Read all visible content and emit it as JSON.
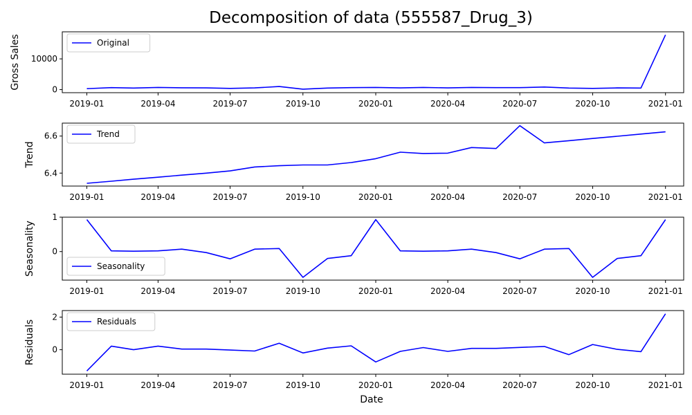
{
  "figure": {
    "title": "Decomposition of data (555587_Drug_3)",
    "xlabel": "Date"
  },
  "chart_data": [
    {
      "type": "line",
      "ylabel": "Gross Sales",
      "legend": "Original",
      "legend_position": "top-left",
      "color": "#0000ff",
      "grid": false,
      "xlim": [
        "2018-12-01",
        "2021-01-24"
      ],
      "ylim": [
        -1000,
        18800
      ],
      "x_ticks": [
        "2019-01",
        "2019-04",
        "2019-07",
        "2019-10",
        "2020-01",
        "2020-04",
        "2020-07",
        "2020-10",
        "2021-01"
      ],
      "y_ticks": [
        0,
        10000
      ],
      "y_tick_labels": [
        "0",
        "10000"
      ],
      "x": [
        "2019-01-01",
        "2019-02-01",
        "2019-03-01",
        "2019-04-01",
        "2019-05-01",
        "2019-06-01",
        "2019-07-01",
        "2019-08-01",
        "2019-09-01",
        "2019-10-01",
        "2019-11-01",
        "2019-12-01",
        "2020-01-01",
        "2020-02-01",
        "2020-03-01",
        "2020-04-01",
        "2020-05-01",
        "2020-06-01",
        "2020-07-01",
        "2020-08-01",
        "2020-09-01",
        "2020-10-01",
        "2020-11-01",
        "2020-12-01",
        "2021-01-01"
      ],
      "y": [
        300,
        650,
        500,
        700,
        600,
        550,
        400,
        550,
        1000,
        150,
        500,
        650,
        700,
        550,
        700,
        550,
        700,
        650,
        650,
        850,
        500,
        400,
        550,
        500,
        17800
      ]
    },
    {
      "type": "line",
      "ylabel": "Trend",
      "legend": "Trend",
      "legend_position": "top-left",
      "color": "#0000ff",
      "grid": false,
      "xlim": [
        "2018-12-01",
        "2021-01-24"
      ],
      "ylim": [
        6.33,
        6.67
      ],
      "x_ticks": [
        "2019-01",
        "2019-04",
        "2019-07",
        "2019-10",
        "2020-01",
        "2020-04",
        "2020-07",
        "2020-10",
        "2021-01"
      ],
      "y_ticks": [
        6.4,
        6.6
      ],
      "y_tick_labels": [
        "6.4",
        "6.6"
      ],
      "x": [
        "2019-01-01",
        "2019-02-01",
        "2019-03-01",
        "2019-04-01",
        "2019-05-01",
        "2019-06-01",
        "2019-07-01",
        "2019-08-01",
        "2019-09-01",
        "2019-10-01",
        "2019-11-01",
        "2019-12-01",
        "2020-01-01",
        "2020-02-01",
        "2020-03-01",
        "2020-04-01",
        "2020-05-01",
        "2020-06-01",
        "2020-07-01",
        "2020-08-01",
        "2020-09-01",
        "2020-10-01",
        "2020-11-01",
        "2020-12-01",
        "2021-01-01"
      ],
      "y": [
        6.345,
        6.356,
        6.367,
        6.378,
        6.389,
        6.4,
        6.412,
        6.433,
        6.44,
        6.444,
        6.444,
        6.457,
        6.478,
        6.513,
        6.506,
        6.508,
        6.538,
        6.533,
        6.656,
        6.563,
        6.575,
        6.587,
        6.599,
        6.611,
        6.623
      ]
    },
    {
      "type": "line",
      "ylabel": "Seasonality",
      "legend": "Seasonality",
      "legend_position": "bottom-left",
      "color": "#0000ff",
      "grid": false,
      "xlim": [
        "2018-12-01",
        "2021-01-24"
      ],
      "ylim": [
        -0.83,
        1.0
      ],
      "x_ticks": [
        "2019-01",
        "2019-04",
        "2019-07",
        "2019-10",
        "2020-01",
        "2020-04",
        "2020-07",
        "2020-10",
        "2021-01"
      ],
      "y_ticks": [
        0,
        1
      ],
      "y_tick_labels": [
        "0",
        "1"
      ],
      "x": [
        "2019-01-01",
        "2019-02-01",
        "2019-03-01",
        "2019-04-01",
        "2019-05-01",
        "2019-06-01",
        "2019-07-01",
        "2019-08-01",
        "2019-09-01",
        "2019-10-01",
        "2019-11-01",
        "2019-12-01",
        "2020-01-01",
        "2020-02-01",
        "2020-03-01",
        "2020-04-01",
        "2020-05-01",
        "2020-06-01",
        "2020-07-01",
        "2020-08-01",
        "2020-09-01",
        "2020-10-01",
        "2020-11-01",
        "2020-12-01",
        "2021-01-01"
      ],
      "y": [
        0.93,
        0.02,
        0.01,
        0.02,
        0.07,
        -0.03,
        -0.21,
        0.07,
        0.09,
        -0.75,
        -0.2,
        -0.12,
        0.93,
        0.02,
        0.01,
        0.02,
        0.07,
        -0.03,
        -0.21,
        0.07,
        0.09,
        -0.75,
        -0.2,
        -0.12,
        0.93
      ]
    },
    {
      "type": "line",
      "ylabel": "Residuals",
      "legend": "Residuals",
      "legend_position": "top-left",
      "color": "#0000ff",
      "grid": false,
      "xlim": [
        "2018-12-01",
        "2021-01-24"
      ],
      "ylim": [
        -1.5,
        2.4
      ],
      "x_ticks": [
        "2019-01",
        "2019-04",
        "2019-07",
        "2019-10",
        "2020-01",
        "2020-04",
        "2020-07",
        "2020-10",
        "2021-01"
      ],
      "y_ticks": [
        0,
        2
      ],
      "y_tick_labels": [
        "0",
        "2"
      ],
      "x": [
        "2019-01-01",
        "2019-02-01",
        "2019-03-01",
        "2019-04-01",
        "2019-05-01",
        "2019-06-01",
        "2019-07-01",
        "2019-08-01",
        "2019-09-01",
        "2019-10-01",
        "2019-11-01",
        "2019-12-01",
        "2020-01-01",
        "2020-02-01",
        "2020-03-01",
        "2020-04-01",
        "2020-05-01",
        "2020-06-01",
        "2020-07-01",
        "2020-08-01",
        "2020-09-01",
        "2020-10-01",
        "2020-11-01",
        "2020-12-01",
        "2021-01-01"
      ],
      "y": [
        -1.3,
        0.22,
        0.0,
        0.22,
        0.04,
        0.04,
        -0.02,
        -0.08,
        0.4,
        -0.2,
        0.1,
        0.24,
        -0.75,
        -0.1,
        0.13,
        -0.1,
        0.08,
        0.08,
        0.14,
        0.2,
        -0.3,
        0.32,
        0.02,
        -0.12,
        2.2
      ]
    }
  ]
}
